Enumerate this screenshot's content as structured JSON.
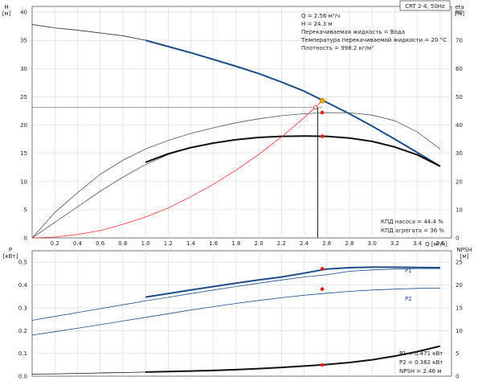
{
  "chart_data": [
    {
      "type": "line",
      "title": "CRT 2-4, 50Hz",
      "ylabel_left": [
        "H",
        "[м]"
      ],
      "ylabel_right": [
        "eta",
        "[%]"
      ],
      "xlabel": "Q [м³/ч]",
      "xlim": [
        0,
        3.7
      ],
      "ylim_left": [
        0,
        41
      ],
      "ylim_right": [
        0,
        82
      ],
      "x_ticks": [
        "0.2",
        "0.4",
        "0.6",
        "0.8",
        "1.0",
        "1.2",
        "1.4",
        "1.6",
        "1.8",
        "2.0",
        "2.2",
        "2.4",
        "2.6",
        "2.8",
        "3.0",
        "3.2",
        "3.4",
        "3.6"
      ],
      "y_ticks_left": [
        "0",
        "5",
        "10",
        "15",
        "20",
        "25",
        "30",
        "35",
        "40"
      ],
      "y_ticks_right": [
        "0",
        "10",
        "20",
        "30",
        "40",
        "50",
        "60",
        "70",
        "80"
      ],
      "grid": true,
      "series": [
        {
          "id": "head_full",
          "axis": "left",
          "color": "#444444",
          "width": 0.9,
          "x": [
            0,
            0.2,
            0.4,
            0.6,
            0.8,
            1.0,
            1.2,
            1.4,
            1.6,
            1.8,
            2.0,
            2.2,
            2.4,
            2.6,
            2.8,
            3.0,
            3.2,
            3.4,
            3.6
          ],
          "y": [
            37.8,
            37.2,
            36.8,
            36.3,
            35.8,
            35.0,
            33.9,
            32.8,
            31.6,
            30.4,
            29.1,
            27.6,
            26.0,
            24.0,
            22.0,
            19.8,
            17.5,
            15.1,
            12.7
          ]
        },
        {
          "id": "head_range",
          "axis": "left",
          "color": "#1d4e8a",
          "width": 2,
          "x": [
            1.0,
            1.2,
            1.4,
            1.6,
            1.8,
            2.0,
            2.2,
            2.4,
            2.6,
            2.8,
            3.0,
            3.2,
            3.4,
            3.6
          ],
          "y": [
            35.0,
            33.9,
            32.8,
            31.6,
            30.4,
            29.1,
            27.6,
            26.0,
            24.0,
            22.0,
            19.8,
            17.5,
            15.1,
            12.7
          ]
        },
        {
          "id": "eta_pump_thin",
          "axis": "right",
          "color": "#555555",
          "width": 0.8,
          "x": [
            0,
            0.2,
            0.4,
            0.6,
            0.8,
            1.0,
            1.2,
            1.4,
            1.6,
            1.8,
            2.0,
            2.2,
            2.4,
            2.6,
            2.8,
            3.0,
            3.2,
            3.4,
            3.6
          ],
          "y": [
            0,
            9,
            16,
            22.5,
            27.5,
            31.5,
            34.5,
            37,
            39,
            40.8,
            42.2,
            43.3,
            44,
            44.4,
            44.3,
            43.5,
            41.5,
            37.5,
            31.5
          ]
        },
        {
          "id": "eta_unit_thin",
          "axis": "right",
          "color": "#555555",
          "width": 0.8,
          "x": [
            0,
            0.2,
            0.4,
            0.6,
            0.8,
            1.0,
            1.2,
            1.4,
            1.6,
            1.8,
            2.0,
            2.2,
            2.4,
            2.6,
            2.8,
            3.0,
            3.2,
            3.4,
            3.6
          ],
          "y": [
            0,
            5.5,
            11,
            16.5,
            21.5,
            26,
            29.5,
            32,
            33.6,
            34.8,
            35.6,
            36,
            36.1,
            36,
            35.4,
            34.2,
            32.2,
            29.4,
            25.4
          ]
        },
        {
          "id": "eta_unit_thick",
          "axis": "right",
          "color": "#111111",
          "width": 2,
          "x": [
            1.0,
            1.2,
            1.4,
            1.6,
            1.8,
            2.0,
            2.2,
            2.4,
            2.6,
            2.8,
            3.0,
            3.2,
            3.4,
            3.6
          ],
          "y": [
            26.8,
            29.8,
            32,
            33.6,
            34.8,
            35.6,
            36,
            36.1,
            36,
            35.4,
            34.2,
            32.2,
            29.4,
            25.4
          ]
        },
        {
          "id": "system_curve",
          "axis": "left",
          "color": "#ff3333",
          "width": 0.8,
          "x": [
            0,
            0.2,
            0.4,
            0.6,
            0.8,
            1.0,
            1.2,
            1.4,
            1.6,
            1.8,
            2.0,
            2.2,
            2.4,
            2.56
          ],
          "y": [
            0,
            0.15,
            0.6,
            1.3,
            2.4,
            3.7,
            5.3,
            7.3,
            9.5,
            12.0,
            14.8,
            17.9,
            21.3,
            24.3
          ]
        }
      ],
      "duty_point": {
        "q": 2.56,
        "h": 24.3,
        "eta_pump": 44.4,
        "eta_unit": 36
      },
      "reference_line_h": 23.1,
      "info_lines": [
        "Q = 2.56 м³/ч",
        "H = 24.3 м",
        "Перекачиваемая жидкость = Вода",
        "Температура перекачиваемой жидкости = 20 °C",
        "Плотность = 998.2 кг/м³"
      ],
      "result_lines": [
        "КПД насоса = 44.4 %",
        "КПД агрегата = 36 %"
      ]
    },
    {
      "type": "line",
      "ylabel_left": [
        "P",
        "[кВт]"
      ],
      "ylabel_right": [
        "NPSH",
        "[м]"
      ],
      "xlim": [
        0,
        3.7
      ],
      "ylim_left": [
        0,
        0.55
      ],
      "ylim_right": [
        0,
        27.5
      ],
      "y_ticks_left": [
        "0.0",
        "0.1",
        "0.2",
        "0.3",
        "0.4",
        "0.5"
      ],
      "y_ticks_right": [
        "0",
        "5",
        "10",
        "15",
        "20",
        "25"
      ],
      "grid": true,
      "series": [
        {
          "id": "p1_thin",
          "name": "P1",
          "axis": "left",
          "color": "#1d4e8a",
          "width": 0.8,
          "x": [
            0,
            0.2,
            0.4,
            0.6,
            0.8,
            1.0,
            1.2,
            1.4,
            1.6,
            1.8,
            2.0,
            2.2,
            2.4,
            2.6,
            2.8,
            3.0,
            3.2,
            3.4,
            3.6
          ],
          "y": [
            0.245,
            0.262,
            0.279,
            0.296,
            0.313,
            0.33,
            0.346,
            0.362,
            0.378,
            0.393,
            0.408,
            0.422,
            0.435,
            0.445,
            0.46,
            0.466,
            0.47,
            0.472,
            0.472
          ]
        },
        {
          "id": "p1_thick",
          "axis": "left",
          "color": "#1d4e8a",
          "width": 2,
          "x": [
            1.0,
            1.2,
            1.4,
            1.6,
            1.8,
            2.0,
            2.2,
            2.4,
            2.6,
            2.8,
            3.0,
            3.2,
            3.4,
            3.6
          ],
          "y": [
            0.347,
            0.362,
            0.378,
            0.393,
            0.408,
            0.422,
            0.435,
            0.452,
            0.47,
            0.476,
            0.478,
            0.478,
            0.477,
            0.476
          ]
        },
        {
          "id": "p2",
          "name": "P2",
          "axis": "left",
          "color": "#1d4e8a",
          "width": 0.8,
          "x": [
            0,
            0.2,
            0.4,
            0.6,
            0.8,
            1.0,
            1.2,
            1.4,
            1.6,
            1.8,
            2.0,
            2.2,
            2.4,
            2.6,
            2.8,
            3.0,
            3.2,
            3.4,
            3.6
          ],
          "y": [
            0.18,
            0.195,
            0.21,
            0.226,
            0.242,
            0.258,
            0.274,
            0.29,
            0.305,
            0.319,
            0.332,
            0.344,
            0.355,
            0.364,
            0.372,
            0.378,
            0.382,
            0.385,
            0.386
          ]
        },
        {
          "id": "npsh_thin",
          "axis": "right",
          "color": "#111111",
          "width": 0.8,
          "x": [
            0,
            0.2,
            0.4,
            0.6,
            0.8,
            1.0
          ],
          "y": [
            0.45,
            0.52,
            0.6,
            0.7,
            0.8,
            0.9
          ]
        },
        {
          "id": "npsh_thick",
          "axis": "right",
          "color": "#111111",
          "width": 2,
          "x": [
            1.0,
            1.2,
            1.4,
            1.6,
            1.8,
            2.0,
            2.2,
            2.4,
            2.6,
            2.8,
            3.0,
            3.2,
            3.4,
            3.6
          ],
          "y": [
            0.9,
            1.0,
            1.12,
            1.25,
            1.42,
            1.65,
            1.92,
            2.22,
            2.55,
            3.0,
            3.6,
            4.4,
            5.4,
            6.6
          ]
        }
      ],
      "labels": {
        "p1": "P1",
        "p2": "P2"
      },
      "duty_point": {
        "q": 2.56,
        "p1": 0.471,
        "p2": 0.382,
        "npsh": 2.46
      },
      "result_lines": [
        "P1 = 0.471 кВт",
        "P2 = 0.382 кВт",
        "NPSH = 2.46 м"
      ]
    }
  ]
}
